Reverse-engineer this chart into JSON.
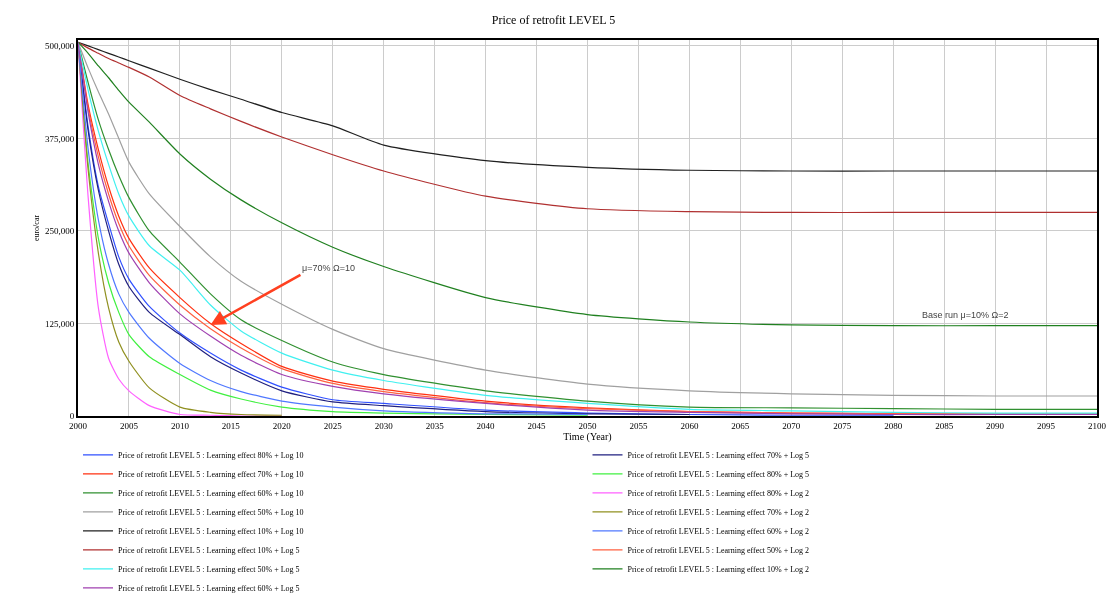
{
  "chart_data": {
    "type": "line",
    "title": "Price of retrofit LEVEL 5",
    "xlabel": "Time (Year)",
    "ylabel": "euro/car",
    "x": [
      2000,
      2001,
      2002,
      2003,
      2004,
      2005,
      2007,
      2010,
      2013,
      2016,
      2020,
      2025,
      2030,
      2040,
      2050,
      2060,
      2070,
      2080,
      2090,
      2100
    ],
    "xlim": [
      2000,
      2100
    ],
    "xticks": [
      2000,
      2005,
      2010,
      2015,
      2020,
      2025,
      2030,
      2035,
      2040,
      2045,
      2050,
      2055,
      2060,
      2065,
      2070,
      2075,
      2080,
      2085,
      2090,
      2095,
      2100
    ],
    "ylim": [
      0,
      508000
    ],
    "yticks": [
      0,
      {
        "value": 125000,
        "label": "125,000"
      },
      {
        "value": 250000,
        "label": "250,000"
      },
      {
        "value": 375000,
        "label": "375,000"
      },
      {
        "value": 500000,
        "label": "500,000"
      }
    ],
    "grid": true,
    "legend": "bottom",
    "marker": "none",
    "line_style": "solid",
    "series": [
      {
        "name": "Price of retrofit LEVEL 5 : Learning effect 80% + Log 10",
        "color": "#3050ff",
        "values": [
          505000,
          390000,
          310000,
          260000,
          215000,
          185000,
          148000,
          112000,
          85000,
          62000,
          39000,
          22000,
          17000,
          8000,
          4000,
          2000,
          1000,
          1000,
          null,
          null
        ]
      },
      {
        "name": "Price of retrofit LEVEL 5 : Learning effect 70% + Log 10",
        "color": "#ff3010",
        "values": [
          505000,
          420000,
          360000,
          310000,
          270000,
          240000,
          200000,
          160000,
          125000,
          98000,
          67000,
          47000,
          36000,
          20000,
          11000,
          6000,
          4000,
          3000,
          3000,
          3000
        ]
      },
      {
        "name": "Price of retrofit LEVEL 5 : Learning effect 60% + Log 10",
        "color": "#309030",
        "values": [
          505000,
          450000,
          400000,
          360000,
          325000,
          295000,
          250000,
          208000,
          165000,
          130000,
          102000,
          73000,
          56000,
          34000,
          20000,
          12000,
          11000,
          10000,
          9000,
          9000
        ]
      },
      {
        "name": "Price of retrofit LEVEL 5 : Learning effect 50% + Log 10",
        "color": "#a0a0a0",
        "values": [
          505000,
          470000,
          438000,
          408000,
          375000,
          343000,
          300000,
          256000,
          215000,
          182000,
          151000,
          117000,
          91000,
          62000,
          43000,
          34000,
          30000,
          28000,
          27000,
          27000
        ]
      },
      {
        "name": "Price of retrofit LEVEL 5 : Learning effect 10% + Log 10",
        "color": "#202020",
        "values": [
          505000,
          500000,
          495000,
          490000,
          485000,
          480000,
          470000,
          455000,
          441000,
          428000,
          410000,
          392000,
          366000,
          345000,
          336000,
          332000,
          331000,
          331000,
          331000,
          331000
        ]
      },
      {
        "name": "Price of retrofit LEVEL 5 : Learning effect 10% + Log 5",
        "color": "#b03030",
        "values": [
          505000,
          497000,
          490000,
          483000,
          477000,
          471000,
          458000,
          433000,
          415000,
          398000,
          377000,
          353000,
          331000,
          297000,
          280000,
          276000,
          275000,
          275000,
          275000,
          275000
        ]
      },
      {
        "name": "Price of retrofit LEVEL 5 : Learning effect 50% + Log 5",
        "color": "#40f0f0",
        "values": [
          505000,
          440000,
          385000,
          340000,
          300000,
          270000,
          230000,
          197000,
          150000,
          115000,
          85000,
          62000,
          48000,
          28000,
          17000,
          9000,
          7000,
          5000,
          4000,
          4000
        ]
      },
      {
        "name": "Price of retrofit LEVEL 5 : Learning effect 60% + Log 5",
        "color": "#a040b0",
        "values": [
          505000,
          410000,
          340000,
          290000,
          250000,
          220000,
          180000,
          138000,
          108000,
          82000,
          56000,
          40000,
          30000,
          17000,
          8000,
          5000,
          3000,
          2000,
          2000,
          2000
        ]
      },
      {
        "name": "Price of retrofit LEVEL 5 : Learning effect 70% + Log 5",
        "color": "#202080",
        "values": [
          505000,
          385000,
          305000,
          250000,
          205000,
          175000,
          140000,
          110000,
          80000,
          58000,
          34000,
          19000,
          14000,
          6000,
          3000,
          2000,
          null,
          null,
          null,
          null
        ]
      },
      {
        "name": "Price of retrofit LEVEL 5 : Learning effect 80% + Log 5",
        "color": "#40f040",
        "values": [
          505000,
          340000,
          240000,
          180000,
          140000,
          110000,
          80000,
          56000,
          35000,
          23000,
          12000,
          6000,
          4000,
          2000,
          1000,
          null,
          null,
          null,
          null,
          null
        ]
      },
      {
        "name": "Price of retrofit LEVEL 5 : Learning effect 80% + Log 2",
        "color": "#ff60ff",
        "values": [
          505000,
          295000,
          146000,
          78000,
          50000,
          34000,
          14000,
          2000,
          1000,
          0,
          0,
          null,
          null,
          null,
          null,
          null,
          null,
          null,
          null,
          null
        ]
      },
      {
        "name": "Price of retrofit LEVEL 5 : Learning effect 70% + Log 2",
        "color": "#909020",
        "values": [
          505000,
          332000,
          220000,
          146000,
          100000,
          74000,
          38000,
          12000,
          5000,
          2000,
          1000,
          null,
          null,
          null,
          null,
          null,
          null,
          null,
          null,
          null
        ]
      },
      {
        "name": "Price of retrofit LEVEL 5 : Learning effect 60% + Log 2",
        "color": "#5078ff",
        "values": [
          505000,
          360000,
          265000,
          205000,
          165000,
          140000,
          105000,
          71000,
          48000,
          33000,
          20000,
          12000,
          7000,
          3000,
          2000,
          null,
          null,
          null,
          null,
          null
        ]
      },
      {
        "name": "Price of retrofit LEVEL 5 : Learning effect 50% + Log 2",
        "color": "#ff6040",
        "values": [
          505000,
          415000,
          350000,
          300000,
          260000,
          230000,
          190000,
          150000,
          118000,
          92000,
          64000,
          44000,
          33000,
          18000,
          10000,
          6000,
          4000,
          3000,
          3000,
          3000
        ]
      },
      {
        "name": "Price of retrofit LEVEL 5 : Learning effect 10% + Log 2",
        "color": "#208020",
        "values": [
          505000,
          490000,
          473000,
          457000,
          440000,
          424000,
          397000,
          354000,
          320000,
          292000,
          261000,
          228000,
          202000,
          160000,
          137000,
          127000,
          123000,
          122000,
          122000,
          122000
        ]
      }
    ],
    "annotations": [
      {
        "text": "μ=70% Ω=10",
        "x": 2013,
        "y": 123000
      },
      {
        "text": "Base run μ=10% Ω=2",
        "x": 2087,
        "y": 122000
      }
    ]
  }
}
